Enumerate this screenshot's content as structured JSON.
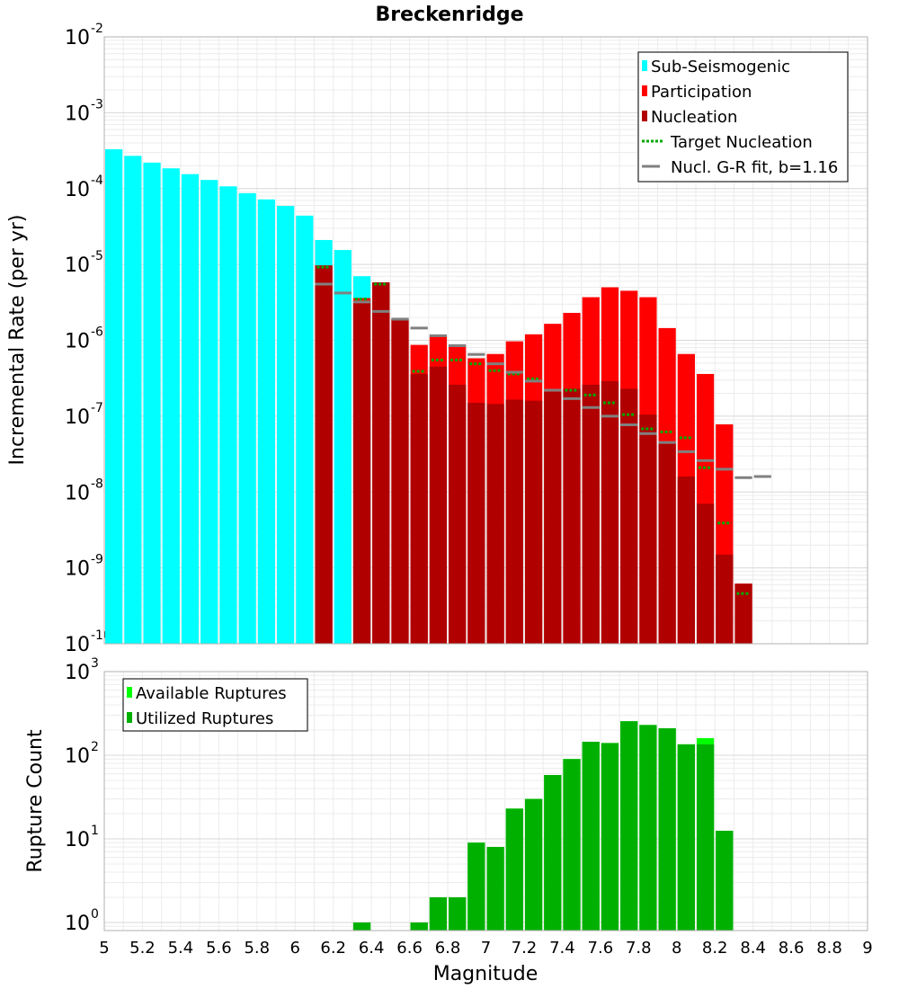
{
  "chart_data": [
    {
      "type": "bar",
      "title": "Breckenridge",
      "xlabel": "",
      "ylabel": "Incremental Rate (per yr)",
      "yscale": "log",
      "xlim": [
        5,
        9
      ],
      "ylim": [
        1e-10,
        0.01
      ],
      "grid": true,
      "legend_position": "top-right",
      "colors": {
        "sub_seismogenic": "#00ffff",
        "participation": "#ff0000",
        "nucleation": "#b00000",
        "target_nucleation": "#00aa00",
        "gr_fit": "#808080"
      },
      "legend": [
        "Sub-Seismogenic",
        "Participation",
        "Nucleation",
        "Target Nucleation",
        "Nucl. G-R fit, b=1.16"
      ],
      "bin_width": 0.1,
      "series": [
        {
          "name": "Sub-Seismogenic",
          "x": [
            5.05,
            5.15,
            5.25,
            5.35,
            5.45,
            5.55,
            5.65,
            5.75,
            5.85,
            5.95,
            6.05,
            6.15,
            6.25,
            6.35
          ],
          "values": [
            0.00033,
            0.00027,
            0.00022,
            0.000185,
            0.000155,
            0.00013,
            0.000107,
            8.7e-05,
            7.2e-05,
            5.9e-05,
            4.4e-05,
            2.1e-05,
            1.55e-05,
            7e-06
          ]
        },
        {
          "name": "Participation",
          "x": [
            6.15,
            6.35,
            6.45,
            6.55,
            6.65,
            6.75,
            6.85,
            6.95,
            7.05,
            7.15,
            7.25,
            7.35,
            7.45,
            7.55,
            7.65,
            7.75,
            7.85,
            7.95,
            8.05,
            8.15,
            8.25,
            8.35
          ],
          "values": [
            9.7e-06,
            3.6e-06,
            5.8e-06,
            1.9e-06,
            8.7e-07,
            1.15e-06,
            8.5e-07,
            5.8e-07,
            6.6e-07,
            9.7e-07,
            1.2e-06,
            1.65e-06,
            2.3e-06,
            3.7e-06,
            5e-06,
            4.5e-06,
            3.7e-06,
            1.45e-06,
            6.6e-07,
            3.6e-07,
            7.8e-08,
            6.2e-10
          ]
        },
        {
          "name": "Nucleation",
          "x": [
            6.15,
            6.35,
            6.45,
            6.55,
            6.65,
            6.75,
            6.85,
            6.95,
            7.05,
            7.15,
            7.25,
            7.35,
            7.45,
            7.55,
            7.65,
            7.75,
            7.85,
            7.95,
            8.05,
            8.15,
            8.25,
            8.35
          ],
          "values": [
            9.7e-06,
            3.3e-06,
            5.8e-06,
            1.9e-06,
            3.6e-07,
            4.5e-07,
            2.6e-07,
            1.5e-07,
            1.45e-07,
            1.65e-07,
            1.6e-07,
            2.1e-07,
            2.3e-07,
            2.6e-07,
            2.9e-07,
            2.3e-07,
            1.05e-07,
            4.5e-08,
            1.6e-08,
            7e-09,
            1.5e-09,
            6.2e-10
          ]
        },
        {
          "name": "Target Nucleation",
          "x": [
            6.15,
            6.35,
            6.45,
            6.55,
            6.65,
            6.75,
            6.85,
            6.95,
            7.05,
            7.15,
            7.25,
            7.35,
            7.45,
            7.55,
            7.65,
            7.75,
            7.85,
            7.95,
            8.05,
            8.15,
            8.25,
            8.35
          ],
          "values": [
            9.2e-06,
            3.5e-06,
            5.5e-06,
            1.9e-06,
            3.9e-07,
            5.5e-07,
            5.5e-07,
            4.9e-07,
            4e-07,
            3.6e-07,
            3.1e-07,
            2.2e-07,
            2.2e-07,
            1.9e-07,
            1.5e-07,
            1.05e-07,
            6.8e-08,
            6.2e-08,
            5.2e-08,
            2.1e-08,
            3.9e-09,
            4.6e-10
          ]
        },
        {
          "name": "Nucl. G-R fit, b=1.16",
          "x": [
            6.15,
            6.25,
            6.35,
            6.45,
            6.55,
            6.65,
            6.75,
            6.85,
            6.95,
            7.05,
            7.15,
            7.25,
            7.35,
            7.45,
            7.55,
            7.65,
            7.75,
            7.85,
            7.95,
            8.05,
            8.15,
            8.25,
            8.35,
            8.45
          ],
          "values": [
            5.5e-06,
            4.2e-06,
            3.2e-06,
            2.4e-06,
            1.9e-06,
            1.45e-06,
            1.15e-06,
            8.5e-07,
            6.5e-07,
            4.9e-07,
            3.8e-07,
            2.9e-07,
            2.2e-07,
            1.7e-07,
            1.3e-07,
            1e-07,
            7.7e-08,
            5.9e-08,
            4.5e-08,
            3.4e-08,
            2.6e-08,
            2e-08,
            1.55e-08,
            1.6e-08
          ]
        }
      ]
    },
    {
      "type": "bar",
      "title": "",
      "xlabel": "Magnitude",
      "ylabel": "Rupture Count",
      "yscale": "log",
      "xlim": [
        5,
        9
      ],
      "ylim": [
        0.8,
        1000
      ],
      "grid": true,
      "legend_position": "top-left",
      "colors": {
        "available": "#00ff00",
        "utilized": "#00b000"
      },
      "legend": [
        "Available Ruptures",
        "Utilized Ruptures"
      ],
      "bin_width": 0.1,
      "series": [
        {
          "name": "Available Ruptures",
          "x": [
            6.35,
            6.65,
            6.75,
            6.85,
            6.95,
            7.05,
            7.15,
            7.25,
            7.35,
            7.45,
            7.55,
            7.65,
            7.75,
            7.85,
            7.95,
            8.05,
            8.15,
            8.25
          ],
          "values": [
            1,
            1,
            2,
            2,
            9,
            8,
            23,
            30,
            58,
            90,
            145,
            140,
            255,
            230,
            210,
            135,
            160,
            12.5
          ]
        },
        {
          "name": "Utilized Ruptures",
          "x": [
            6.35,
            6.65,
            6.75,
            6.85,
            6.95,
            7.05,
            7.15,
            7.25,
            7.35,
            7.45,
            7.55,
            7.65,
            7.75,
            7.85,
            7.95,
            8.05,
            8.15,
            8.25
          ],
          "values": [
            1,
            1,
            2,
            2,
            9,
            8,
            23,
            30,
            58,
            90,
            145,
            140,
            255,
            230,
            210,
            135,
            135,
            12.5
          ]
        }
      ]
    }
  ],
  "x_tick_labels": [
    "5",
    "5.2",
    "5.4",
    "5.6",
    "5.8",
    "6",
    "6.2",
    "6.4",
    "6.6",
    "6.8",
    "7",
    "7.2",
    "7.4",
    "7.6",
    "7.8",
    "8",
    "8.2",
    "8.4",
    "8.6",
    "8.8",
    "9"
  ],
  "top_y_ticks": [
    {
      "base": "10",
      "exp": "-10"
    },
    {
      "base": "10",
      "exp": "-9"
    },
    {
      "base": "10",
      "exp": "-8"
    },
    {
      "base": "10",
      "exp": "-7"
    },
    {
      "base": "10",
      "exp": "-6"
    },
    {
      "base": "10",
      "exp": "-5"
    },
    {
      "base": "10",
      "exp": "-4"
    },
    {
      "base": "10",
      "exp": "-3"
    },
    {
      "base": "10",
      "exp": "-2"
    }
  ],
  "bottom_y_ticks": [
    {
      "base": "10",
      "exp": "0"
    },
    {
      "base": "10",
      "exp": "1"
    },
    {
      "base": "10",
      "exp": "2"
    },
    {
      "base": "10",
      "exp": "3"
    }
  ]
}
